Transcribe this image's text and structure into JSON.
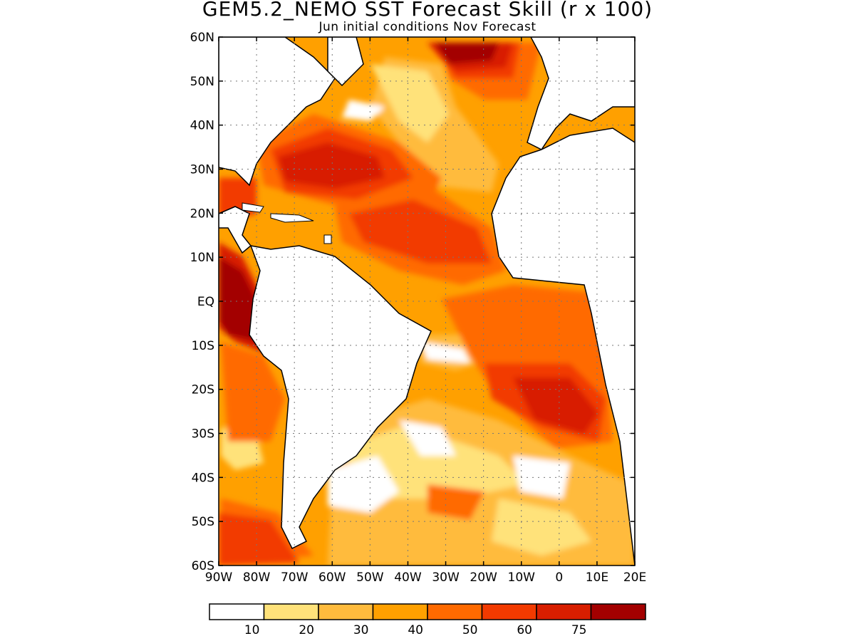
{
  "title": "GEM5.2_NEMO SST Forecast Skill (r x 100)",
  "subtitle": "Jun initial conditions   Nov Forecast",
  "map": {
    "projection": "lat-lon",
    "lon_range": [
      -90,
      20
    ],
    "lat_range": [
      -60,
      60
    ],
    "lat_ticks": [
      {
        "lat": 60,
        "label": "60N"
      },
      {
        "lat": 50,
        "label": "50N"
      },
      {
        "lat": 40,
        "label": "40N"
      },
      {
        "lat": 30,
        "label": "30N"
      },
      {
        "lat": 20,
        "label": "20N"
      },
      {
        "lat": 10,
        "label": "10N"
      },
      {
        "lat": 0,
        "label": "EQ"
      },
      {
        "lat": -10,
        "label": "10S"
      },
      {
        "lat": -20,
        "label": "20S"
      },
      {
        "lat": -30,
        "label": "30S"
      },
      {
        "lat": -40,
        "label": "40S"
      },
      {
        "lat": -50,
        "label": "50S"
      },
      {
        "lat": -60,
        "label": "60S"
      }
    ],
    "lon_ticks": [
      {
        "lon": -90,
        "label": "90W"
      },
      {
        "lon": -80,
        "label": "80W"
      },
      {
        "lon": -70,
        "label": "70W"
      },
      {
        "lon": -60,
        "label": "60W"
      },
      {
        "lon": -50,
        "label": "50W"
      },
      {
        "lon": -40,
        "label": "40W"
      },
      {
        "lon": -30,
        "label": "30W"
      },
      {
        "lon": -20,
        "label": "20W"
      },
      {
        "lon": -10,
        "label": "10W"
      },
      {
        "lon": 0,
        "label": "0"
      },
      {
        "lon": 10,
        "label": "10E"
      },
      {
        "lon": 20,
        "label": "20E"
      }
    ],
    "gridlines": "dotted",
    "colorbar": {
      "colors": [
        "#ffffff",
        "#ffe27a",
        "#ffbb3d",
        "#ffa000",
        "#ff6a00",
        "#f23a00",
        "#d81e00",
        "#a30000"
      ],
      "labels": [
        "10",
        "20",
        "30",
        "40",
        "50",
        "60",
        "75"
      ]
    }
  }
}
